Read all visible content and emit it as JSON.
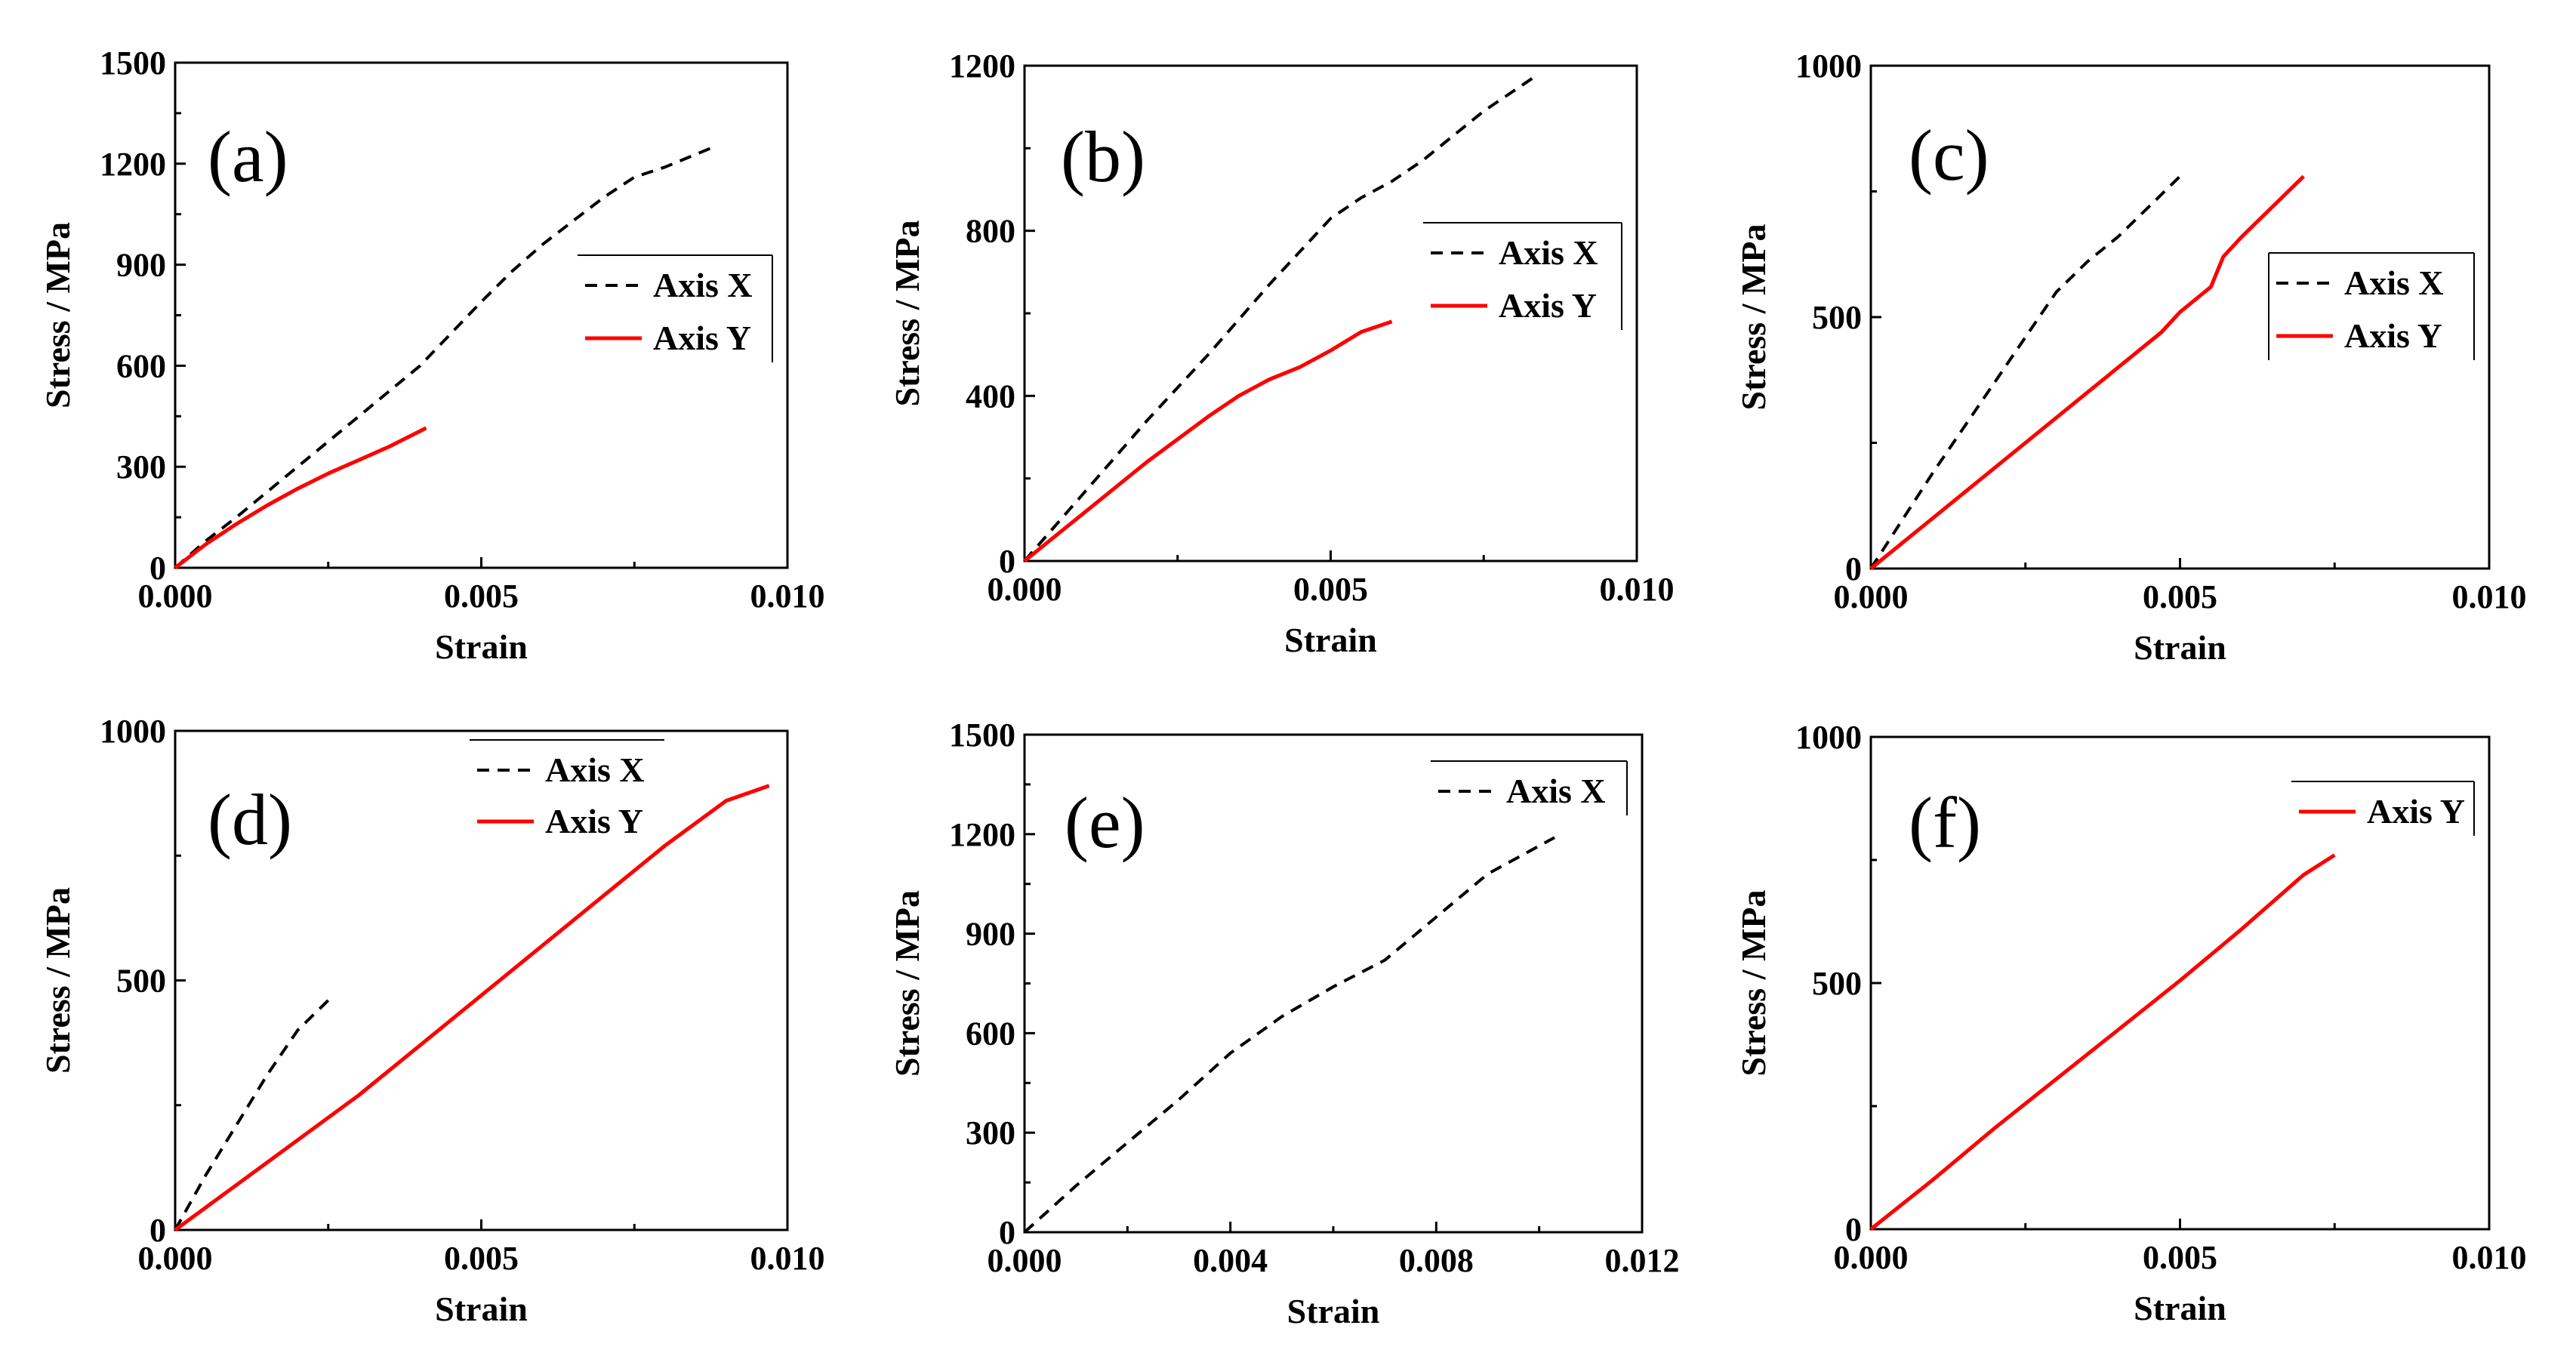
{
  "colors": {
    "axis_x": "#000000",
    "axis_y": "#ff0000",
    "frame": "#000000",
    "background": "#ffffff"
  },
  "chart_data": [
    {
      "type": "line",
      "panel": "(a)",
      "xlabel": "Strain",
      "ylabel": "Stress / MPa",
      "xlim": [
        0,
        0.01
      ],
      "ylim": [
        0,
        1500
      ],
      "xticks": [
        "0.000",
        "0.005",
        "0.010"
      ],
      "xtick_values": [
        0,
        0.005,
        0.01
      ],
      "yticks": [
        "0",
        "300",
        "600",
        "900",
        "1200",
        "1500"
      ],
      "ytick_values": [
        0,
        300,
        600,
        900,
        1200,
        1500
      ],
      "legend": {
        "position": "middle-right"
      },
      "series": [
        {
          "name": "Axis X",
          "style": "dashed",
          "color": "#000000",
          "x": [
            0,
            0.0005,
            0.001,
            0.002,
            0.003,
            0.004,
            0.005,
            0.0055,
            0.006,
            0.0065,
            0.007,
            0.0075,
            0.008,
            0.0088
          ],
          "y": [
            0,
            80,
            150,
            300,
            450,
            600,
            790,
            880,
            960,
            1030,
            1100,
            1160,
            1190,
            1250
          ]
        },
        {
          "name": "Axis Y",
          "style": "solid",
          "color": "#ff0000",
          "x": [
            0,
            0.0005,
            0.001,
            0.0015,
            0.002,
            0.0025,
            0.003,
            0.0035,
            0.0041
          ],
          "y": [
            0,
            70,
            130,
            185,
            235,
            280,
            320,
            360,
            415
          ]
        }
      ]
    },
    {
      "type": "line",
      "panel": "(b)",
      "xlabel": "Strain",
      "ylabel": "Stress / MPa",
      "xlim": [
        0,
        0.01
      ],
      "ylim": [
        0,
        1200
      ],
      "xticks": [
        "0.000",
        "0.005",
        "0.010"
      ],
      "xtick_values": [
        0,
        0.005,
        0.01
      ],
      "yticks": [
        "0",
        "400",
        "800",
        "1200"
      ],
      "ytick_values": [
        0,
        400,
        800,
        1200
      ],
      "legend": {
        "position": "top-right"
      },
      "series": [
        {
          "name": "Axis X",
          "style": "dashed",
          "color": "#000000",
          "x": [
            0,
            0.001,
            0.002,
            0.003,
            0.004,
            0.005,
            0.0055,
            0.006,
            0.0065,
            0.007,
            0.0075,
            0.0083
          ],
          "y": [
            0,
            170,
            340,
            500,
            670,
            830,
            880,
            920,
            970,
            1030,
            1090,
            1170
          ]
        },
        {
          "name": "Axis Y",
          "style": "solid",
          "color": "#ff0000",
          "x": [
            0,
            0.001,
            0.002,
            0.003,
            0.0035,
            0.004,
            0.0045,
            0.005,
            0.0055,
            0.006
          ],
          "y": [
            0,
            120,
            240,
            350,
            400,
            440,
            470,
            510,
            555,
            580
          ]
        }
      ]
    },
    {
      "type": "line",
      "panel": "(c)",
      "xlabel": "Strain",
      "ylabel": "Stress / MPa",
      "xlim": [
        0,
        0.01
      ],
      "ylim": [
        0,
        1000
      ],
      "xticks": [
        "0.000",
        "0.005",
        "0.010"
      ],
      "xtick_values": [
        0,
        0.005,
        0.01
      ],
      "yticks": [
        "0",
        "500",
        "1000"
      ],
      "ytick_values": [
        0,
        500,
        1000
      ],
      "legend": {
        "position": "middle-right"
      },
      "series": [
        {
          "name": "Axis X",
          "style": "dashed",
          "color": "#000000",
          "x": [
            0,
            0.001,
            0.002,
            0.003,
            0.0035,
            0.004,
            0.0045,
            0.005
          ],
          "y": [
            0,
            190,
            370,
            550,
            610,
            660,
            720,
            780
          ]
        },
        {
          "name": "Axis Y",
          "style": "solid",
          "color": "#ff0000",
          "x": [
            0,
            0.001,
            0.002,
            0.003,
            0.004,
            0.0047,
            0.005,
            0.0055,
            0.0057,
            0.006,
            0.0065,
            0.007
          ],
          "y": [
            0,
            100,
            200,
            300,
            400,
            470,
            510,
            560,
            620,
            660,
            720,
            780
          ]
        }
      ]
    },
    {
      "type": "line",
      "panel": "(d)",
      "xlabel": "Strain",
      "ylabel": "Stress / MPa",
      "xlim": [
        0,
        0.01
      ],
      "ylim": [
        0,
        1000
      ],
      "xticks": [
        "0.000",
        "0.005",
        "0.010"
      ],
      "xtick_values": [
        0,
        0.005,
        0.01
      ],
      "yticks": [
        "0",
        "500",
        "1000"
      ],
      "ytick_values": [
        0,
        500,
        1000
      ],
      "legend": {
        "position": "top-right"
      },
      "series": [
        {
          "name": "Axis X",
          "style": "dashed",
          "color": "#000000",
          "x": [
            0,
            0.0005,
            0.001,
            0.0015,
            0.002,
            0.0025
          ],
          "y": [
            0,
            110,
            210,
            310,
            400,
            460
          ]
        },
        {
          "name": "Axis Y",
          "style": "solid",
          "color": "#ff0000",
          "x": [
            0,
            0.001,
            0.002,
            0.003,
            0.004,
            0.005,
            0.006,
            0.007,
            0.008,
            0.009,
            0.0097
          ],
          "y": [
            0,
            90,
            180,
            270,
            370,
            470,
            570,
            670,
            770,
            860,
            890
          ]
        }
      ]
    },
    {
      "type": "line",
      "panel": "(e)",
      "xlabel": "Strain",
      "ylabel": "Stress / MPa",
      "xlim": [
        0,
        0.012
      ],
      "ylim": [
        0,
        1500
      ],
      "xticks": [
        "0.000",
        "0.004",
        "0.008",
        "0.012"
      ],
      "xtick_values": [
        0,
        0.004,
        0.008,
        0.012
      ],
      "yticks": [
        "0",
        "300",
        "600",
        "900",
        "1200",
        "1500"
      ],
      "ytick_values": [
        0,
        300,
        600,
        900,
        1200,
        1500
      ],
      "legend": {
        "position": "top-right"
      },
      "series": [
        {
          "name": "Axis X",
          "style": "dashed",
          "color": "#000000",
          "x": [
            0,
            0.001,
            0.002,
            0.003,
            0.004,
            0.005,
            0.006,
            0.007,
            0.008,
            0.009,
            0.0103
          ],
          "y": [
            0,
            140,
            270,
            400,
            540,
            650,
            740,
            820,
            950,
            1080,
            1190
          ]
        }
      ]
    },
    {
      "type": "line",
      "panel": "(f)",
      "xlabel": "Strain",
      "ylabel": "Stress / MPa",
      "xlim": [
        0,
        0.01
      ],
      "ylim": [
        0,
        1000
      ],
      "xticks": [
        "0.000",
        "0.005",
        "0.010"
      ],
      "xtick_values": [
        0,
        0.005,
        0.01
      ],
      "yticks": [
        "0",
        "500",
        "1000"
      ],
      "ytick_values": [
        0,
        500,
        1000
      ],
      "legend": {
        "position": "top-right"
      },
      "series": [
        {
          "name": "Axis Y",
          "style": "solid",
          "color": "#ff0000",
          "x": [
            0,
            0.001,
            0.002,
            0.003,
            0.004,
            0.005,
            0.006,
            0.007,
            0.0075
          ],
          "y": [
            0,
            100,
            205,
            305,
            405,
            505,
            610,
            720,
            760
          ]
        }
      ]
    }
  ]
}
